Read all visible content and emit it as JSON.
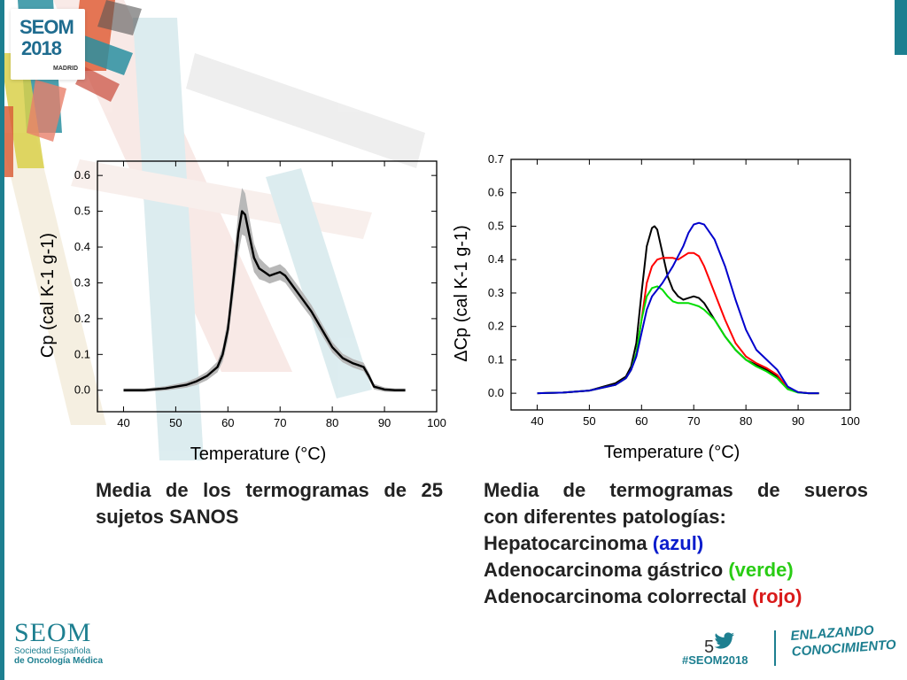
{
  "logo": {
    "line1": "SEOM",
    "line2": "2018",
    "city": "MADRID"
  },
  "chart_data": [
    {
      "type": "line",
      "title": "",
      "xlabel": "Temperature (°C)",
      "ylabel": "Cp (cal K-1 g-1)",
      "xlim": [
        35,
        100
      ],
      "ylim": [
        -0.06,
        0.64
      ],
      "xticks": [
        40,
        50,
        60,
        70,
        80,
        90,
        100
      ],
      "yticks": [
        0.0,
        0.1,
        0.2,
        0.3,
        0.4,
        0.5,
        0.6
      ],
      "series": [
        {
          "color": "#000000",
          "band_color": "#b8b8b8",
          "x": [
            40,
            44,
            48,
            52,
            54,
            56,
            58,
            59,
            60,
            61,
            62,
            62.7,
            63.3,
            64,
            65,
            66,
            67,
            68,
            69,
            70,
            71,
            72,
            74,
            76,
            78,
            80,
            82,
            84,
            85,
            86,
            87,
            88,
            90,
            92,
            94
          ],
          "y": [
            0.0,
            0.0,
            0.005,
            0.015,
            0.025,
            0.04,
            0.065,
            0.1,
            0.17,
            0.3,
            0.44,
            0.5,
            0.49,
            0.44,
            0.37,
            0.34,
            0.33,
            0.32,
            0.325,
            0.33,
            0.32,
            0.3,
            0.26,
            0.22,
            0.17,
            0.12,
            0.09,
            0.075,
            0.07,
            0.065,
            0.04,
            0.01,
            0.002,
            0.0,
            0.0
          ],
          "band": [
            0.005,
            0.005,
            0.006,
            0.008,
            0.01,
            0.012,
            0.015,
            0.02,
            0.03,
            0.045,
            0.06,
            0.065,
            0.06,
            0.05,
            0.04,
            0.03,
            0.025,
            0.022,
            0.022,
            0.022,
            0.02,
            0.02,
            0.02,
            0.018,
            0.016,
            0.015,
            0.012,
            0.012,
            0.012,
            0.012,
            0.01,
            0.008,
            0.006,
            0.005,
            0.005
          ]
        }
      ]
    },
    {
      "type": "line",
      "title": "",
      "xlabel": "Temperature (°C)",
      "ylabel": "ΔCp (cal K-1 g-1)",
      "xlim": [
        35,
        100
      ],
      "ylim": [
        -0.05,
        0.7
      ],
      "xticks": [
        40,
        50,
        60,
        70,
        80,
        90,
        100
      ],
      "yticks": [
        0.0,
        0.1,
        0.2,
        0.3,
        0.4,
        0.5,
        0.6,
        0.7
      ],
      "series": [
        {
          "color": "#000000",
          "x": [
            40,
            45,
            50,
            55,
            57,
            58,
            59,
            60,
            61,
            62,
            62.5,
            63,
            64,
            65,
            66,
            67,
            68,
            69,
            70,
            71,
            72,
            74,
            76,
            78,
            80,
            82,
            84,
            86,
            88,
            90,
            92,
            94
          ],
          "y": [
            0.0,
            0.002,
            0.008,
            0.03,
            0.05,
            0.08,
            0.15,
            0.3,
            0.44,
            0.495,
            0.5,
            0.49,
            0.42,
            0.35,
            0.31,
            0.29,
            0.28,
            0.285,
            0.29,
            0.285,
            0.27,
            0.22,
            0.17,
            0.13,
            0.1,
            0.085,
            0.07,
            0.05,
            0.015,
            0.003,
            0.0,
            0.0
          ]
        },
        {
          "color": "#ff0000",
          "x": [
            40,
            45,
            50,
            55,
            57,
            58,
            59,
            60,
            61,
            62,
            63,
            64,
            65,
            66,
            67,
            68,
            69,
            70,
            71,
            72,
            73,
            74,
            76,
            78,
            80,
            82,
            84,
            86,
            88,
            90,
            92,
            94
          ],
          "y": [
            0.0,
            0.002,
            0.008,
            0.025,
            0.045,
            0.07,
            0.12,
            0.22,
            0.33,
            0.38,
            0.4,
            0.405,
            0.405,
            0.405,
            0.4,
            0.41,
            0.42,
            0.42,
            0.41,
            0.38,
            0.34,
            0.3,
            0.22,
            0.15,
            0.11,
            0.09,
            0.075,
            0.055,
            0.015,
            0.003,
            0.0,
            0.0
          ]
        },
        {
          "color": "#00dd00",
          "x": [
            40,
            45,
            50,
            55,
            57,
            58,
            59,
            60,
            61,
            62,
            63,
            64,
            65,
            66,
            67,
            68,
            69,
            70,
            71,
            72,
            74,
            76,
            78,
            80,
            82,
            84,
            86,
            88,
            90,
            92,
            94
          ],
          "y": [
            0.0,
            0.002,
            0.008,
            0.025,
            0.045,
            0.07,
            0.12,
            0.22,
            0.29,
            0.315,
            0.32,
            0.31,
            0.29,
            0.275,
            0.27,
            0.27,
            0.27,
            0.265,
            0.26,
            0.25,
            0.22,
            0.17,
            0.13,
            0.1,
            0.08,
            0.065,
            0.045,
            0.012,
            0.002,
            0.0,
            0.0
          ]
        },
        {
          "color": "#0000cc",
          "x": [
            40,
            45,
            50,
            55,
            57,
            58,
            59,
            60,
            61,
            62,
            63,
            64,
            66,
            68,
            69,
            70,
            71,
            72,
            74,
            76,
            78,
            80,
            82,
            84,
            86,
            88,
            90,
            92,
            94
          ],
          "y": [
            0.0,
            0.002,
            0.008,
            0.025,
            0.045,
            0.07,
            0.11,
            0.18,
            0.25,
            0.29,
            0.31,
            0.33,
            0.38,
            0.44,
            0.48,
            0.505,
            0.51,
            0.505,
            0.46,
            0.38,
            0.28,
            0.19,
            0.13,
            0.1,
            0.07,
            0.02,
            0.003,
            0.0,
            0.0
          ]
        }
      ]
    }
  ],
  "captions": {
    "left": "Media de los termogramas de 25 sujetos SANOS",
    "right_line1": "Media de termogramas de sueros",
    "right_line2": "con diferentes patologías:",
    "line3_name": "Hepatocarcinoma",
    "line3_color": "(azul)",
    "line4_name": "Adenocarcinoma gástrico",
    "line4_color": "(verde)",
    "line5_name": "Adenocarcinoma colorrectal",
    "line5_color": "(rojo)"
  },
  "footer": {
    "seom": "SEOM",
    "sub1": "Sociedad Española",
    "sub2": "de Oncología Médica",
    "page": "5",
    "hashtag": "#SEOM2018",
    "slogan1": "ENLAZANDO",
    "slogan2": "CONOCIMIENTO"
  },
  "colors": {
    "accent": "#1d7f90",
    "azul": "#0a1ccc",
    "verde": "#29cc14",
    "rojo": "#d91a1a"
  }
}
